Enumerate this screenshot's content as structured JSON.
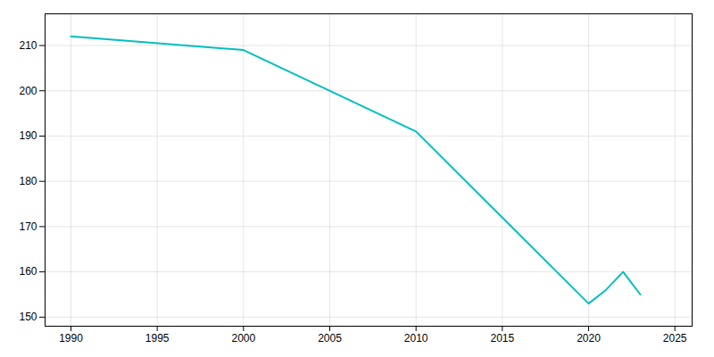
{
  "chart_data": {
    "type": "line",
    "x": [
      1990,
      2000,
      2010,
      2020,
      2021,
      2022,
      2023
    ],
    "values": [
      212,
      209,
      191,
      153,
      156,
      160,
      155
    ],
    "color": "#00BFBF",
    "xlim": [
      1988.5,
      2026
    ],
    "ylim": [
      148,
      217
    ],
    "xticks": [
      1990,
      1995,
      2000,
      2005,
      2010,
      2015,
      2020,
      2025
    ],
    "yticks": [
      150,
      160,
      170,
      180,
      190,
      200,
      210
    ],
    "grid": true
  }
}
